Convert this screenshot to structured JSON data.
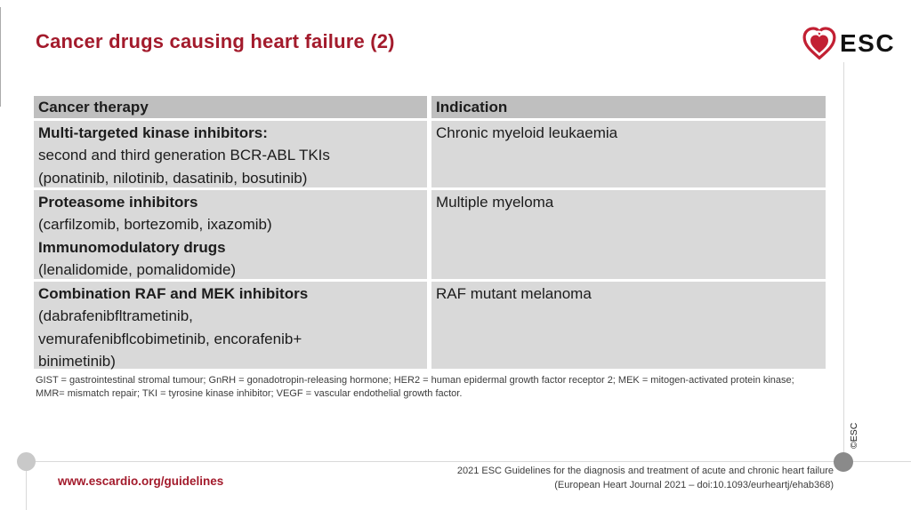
{
  "colors": {
    "accent_red": "#A31B2C",
    "heart_red": "#C22033",
    "header_bg": "#BFBFBF",
    "row_bg": "#D9D9D9"
  },
  "header": {
    "title": "Cancer drugs causing heart failure (2)",
    "logo_text": "ESC"
  },
  "table": {
    "columns": [
      "Cancer therapy",
      "Indication"
    ],
    "rows": [
      {
        "therapy_lines": [
          {
            "text": "Multi-targeted kinase inhibitors:",
            "bold": true
          },
          {
            "text": "second and third generation BCR-ABL TKIs",
            "bold": false
          },
          {
            "text": "(ponatinib, nilotinib, dasatinib, bosutinib)",
            "bold": false
          }
        ],
        "indication": "Chronic myeloid leukaemia"
      },
      {
        "therapy_lines": [
          {
            "text": "Proteasome inhibitors",
            "bold": true
          },
          {
            "text": "(carfilzomib, bortezomib, ixazomib)",
            "bold": false
          },
          {
            "text": "Immunomodulatory drugs",
            "bold": true
          },
          {
            "text": "(lenalidomide, pomalidomide)",
            "bold": false
          }
        ],
        "indication": "Multiple myeloma"
      },
      {
        "therapy_lines": [
          {
            "text": "Combination RAF and MEK inhibitors",
            "bold": true
          },
          {
            "text": "(dabrafenibfltrametinib,",
            "bold": false
          },
          {
            "text": "vemurafenibflcobimetinib, encorafenib+",
            "bold": false
          },
          {
            "text": "binimetinib)",
            "bold": false
          }
        ],
        "indication": "RAF mutant melanoma"
      }
    ]
  },
  "footnote": {
    "line1": "GIST = gastrointestinal stromal tumour; GnRH = gonadotropin-releasing hormone; HER2 = human epidermal growth factor receptor 2; MEK = mitogen-activated protein kinase;",
    "line2": "MMR= mismatch repair; TKI = tyrosine kinase inhibitor; VEGF = vascular endothelial growth factor."
  },
  "side": {
    "copyright": "©ESC"
  },
  "footer": {
    "link": "www.escardio.org/guidelines",
    "ref_line1": "2021 ESC Guidelines for the diagnosis and treatment of acute and chronic heart failure",
    "ref_line2": "(European Heart Journal 2021 – doi:10.1093/eurheartj/ehab368)"
  }
}
